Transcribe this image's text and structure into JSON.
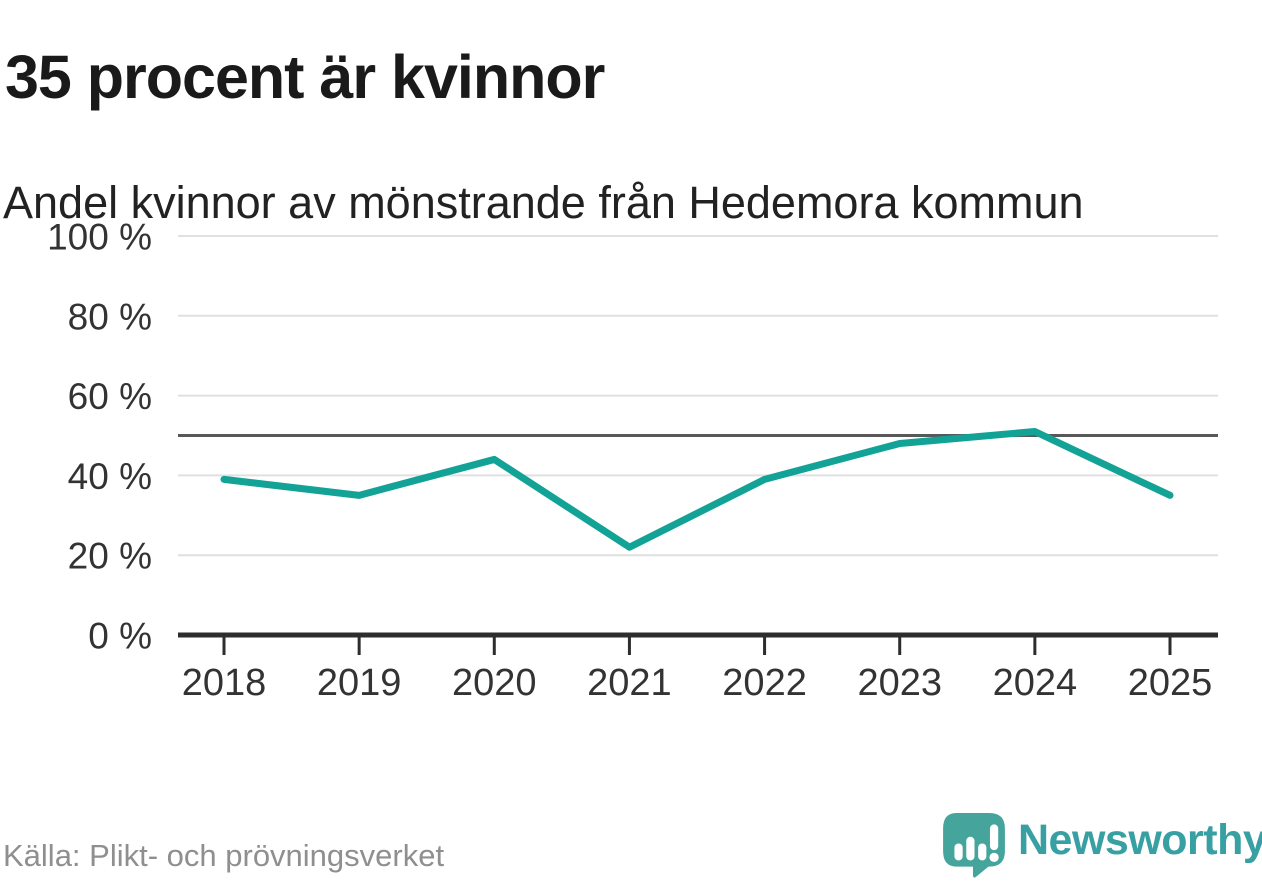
{
  "header": {
    "title": "35 procent är kvinnor",
    "subtitle": "Andel kvinnor av mönstrande från Hedemora kommun"
  },
  "chart_data": {
    "type": "line",
    "title": "35 procent är kvinnor",
    "subtitle": "Andel kvinnor av mönstrande från Hedemora kommun",
    "x": [
      "2018",
      "2019",
      "2020",
      "2021",
      "2022",
      "2023",
      "2024",
      "2025"
    ],
    "series": [
      {
        "name": "Andel kvinnor av mönstrande",
        "values": [
          39,
          35,
          44,
          22,
          39,
          48,
          51,
          35
        ]
      }
    ],
    "xlabel": "",
    "ylabel": "",
    "ylim": [
      0,
      100
    ],
    "ytick_step": 20,
    "ytick_suffix": " %",
    "grid": true,
    "legend": "none",
    "reference_line": {
      "value": 50,
      "color": "#58585a"
    },
    "line_color": "#13a296",
    "grid_color": "#e0e0e0",
    "axis_color": "#2d2d2d",
    "tick_label_color": "#333333"
  },
  "footer": {
    "source": "Källa: Plikt- och prövningsverket",
    "logo_text": "Newsworthy",
    "logo_icon_name": "newsworthy-speech-bubble-bar-chart-icon",
    "logo_color": "#45a49c",
    "logo_text_color": "#38a0a3"
  }
}
